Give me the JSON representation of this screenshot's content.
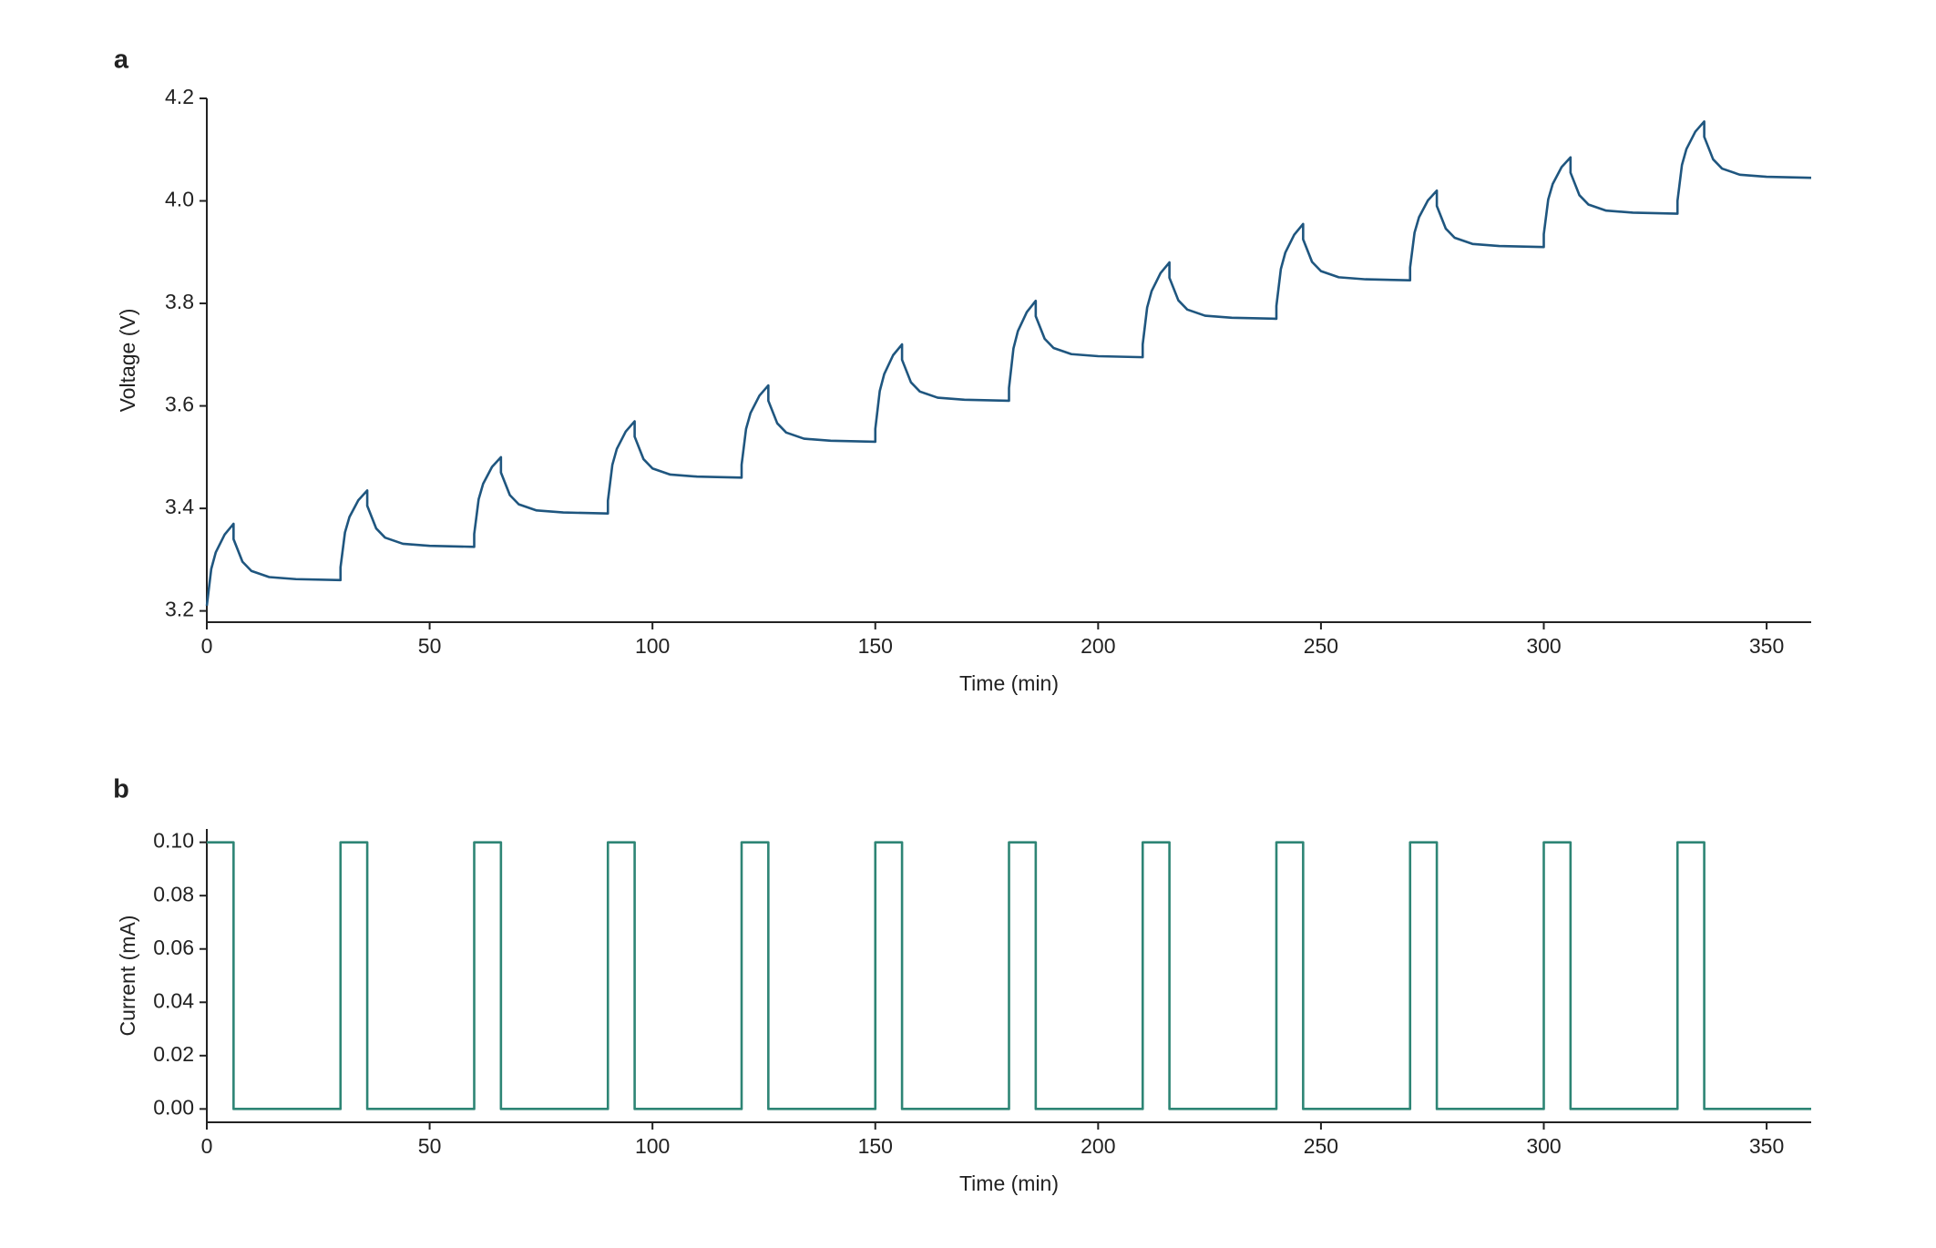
{
  "chart_data": [
    {
      "type": "line",
      "label": "a",
      "xlabel": "Time (min)",
      "ylabel": "Voltage (V)",
      "color": "#1f567f",
      "xlim": [
        0,
        360
      ],
      "ylim": [
        3.178,
        4.2
      ],
      "xticks": [
        0,
        50,
        100,
        150,
        200,
        250,
        300,
        350
      ],
      "yticks": [
        3.2,
        3.4,
        3.6,
        3.8,
        {
          "value": 4.0,
          "label": "4.0"
        },
        4.2
      ],
      "x": [
        0,
        1,
        2,
        4,
        6,
        6,
        8,
        10,
        14,
        20,
        30,
        30,
        31,
        32,
        34,
        36,
        36,
        38,
        40,
        44,
        50,
        60,
        60,
        61,
        62,
        64,
        66,
        66,
        68,
        70,
        74,
        80,
        90,
        90,
        91,
        92,
        94,
        96,
        96,
        98,
        100,
        104,
        110,
        120,
        120,
        121,
        122,
        124,
        126,
        126,
        128,
        130,
        134,
        140,
        150,
        150,
        151,
        152,
        154,
        156,
        156,
        158,
        160,
        164,
        170,
        180,
        180,
        181,
        182,
        184,
        186,
        186,
        188,
        190,
        194,
        200,
        210,
        210,
        211,
        212,
        214,
        216,
        216,
        218,
        220,
        224,
        230,
        240,
        240,
        241,
        242,
        244,
        246,
        246,
        248,
        250,
        254,
        260,
        270,
        270,
        271,
        272,
        274,
        276,
        276,
        278,
        280,
        284,
        290,
        300,
        300,
        301,
        302,
        304,
        306,
        306,
        308,
        310,
        314,
        320,
        330,
        330,
        331,
        332,
        334,
        336,
        336,
        338,
        340,
        344,
        350,
        360
      ],
      "values": [
        3.21,
        3.282,
        3.314,
        3.349,
        3.37,
        3.34,
        3.296,
        3.278,
        3.266,
        3.262,
        3.26,
        3.285,
        3.353,
        3.383,
        3.416,
        3.435,
        3.405,
        3.361,
        3.343,
        3.331,
        3.327,
        3.325,
        3.35,
        3.418,
        3.448,
        3.481,
        3.5,
        3.47,
        3.426,
        3.408,
        3.396,
        3.392,
        3.39,
        3.415,
        3.485,
        3.516,
        3.55,
        3.57,
        3.54,
        3.496,
        3.478,
        3.466,
        3.462,
        3.46,
        3.485,
        3.555,
        3.586,
        3.62,
        3.64,
        3.61,
        3.566,
        3.548,
        3.536,
        3.532,
        3.53,
        3.555,
        3.629,
        3.662,
        3.699,
        3.72,
        3.69,
        3.646,
        3.628,
        3.616,
        3.612,
        3.61,
        3.635,
        3.712,
        3.746,
        3.783,
        3.805,
        3.775,
        3.731,
        3.713,
        3.701,
        3.697,
        3.695,
        3.72,
        3.792,
        3.824,
        3.859,
        3.88,
        3.85,
        3.806,
        3.788,
        3.776,
        3.772,
        3.77,
        3.795,
        3.867,
        3.899,
        3.934,
        3.955,
        3.925,
        3.881,
        3.863,
        3.851,
        3.847,
        3.845,
        3.87,
        3.938,
        3.968,
        4.001,
        4.02,
        3.99,
        3.946,
        3.928,
        3.916,
        3.912,
        3.91,
        3.935,
        4.003,
        4.033,
        4.066,
        4.085,
        4.055,
        4.011,
        3.993,
        3.981,
        3.977,
        3.975,
        4.0,
        4.07,
        4.101,
        4.135,
        4.155,
        4.125,
        4.081,
        4.063,
        4.051,
        4.047,
        4.045
      ]
    },
    {
      "type": "line",
      "label": "b",
      "xlabel": "Time (min)",
      "ylabel": "Current (mA)",
      "color": "#2e8575",
      "xlim": [
        0,
        360
      ],
      "ylim": [
        -0.005,
        0.105
      ],
      "xticks": [
        0,
        50,
        100,
        150,
        200,
        250,
        300,
        350
      ],
      "yticks": [
        {
          "value": 0,
          "label": "0.00"
        },
        {
          "value": 0.02,
          "label": "0.02"
        },
        {
          "value": 0.04,
          "label": "0.04"
        },
        {
          "value": 0.06,
          "label": "0.06"
        },
        {
          "value": 0.08,
          "label": "0.08"
        },
        {
          "value": 0.1,
          "label": "0.10"
        }
      ],
      "x": [
        0,
        6,
        6,
        30,
        30,
        36,
        36,
        60,
        60,
        66,
        66,
        90,
        90,
        96,
        96,
        120,
        120,
        126,
        126,
        150,
        150,
        156,
        156,
        180,
        180,
        186,
        186,
        210,
        210,
        216,
        216,
        240,
        240,
        246,
        246,
        270,
        270,
        276,
        276,
        300,
        300,
        306,
        306,
        330,
        330,
        336,
        336,
        360
      ],
      "values": [
        0.1,
        0.1,
        0,
        0,
        0.1,
        0.1,
        0,
        0,
        0.1,
        0.1,
        0,
        0,
        0.1,
        0.1,
        0,
        0,
        0.1,
        0.1,
        0,
        0,
        0.1,
        0.1,
        0,
        0,
        0.1,
        0.1,
        0,
        0,
        0.1,
        0.1,
        0,
        0,
        0.1,
        0.1,
        0,
        0,
        0.1,
        0.1,
        0,
        0,
        0.1,
        0.1,
        0,
        0,
        0.1,
        0.1,
        0,
        0
      ]
    }
  ]
}
